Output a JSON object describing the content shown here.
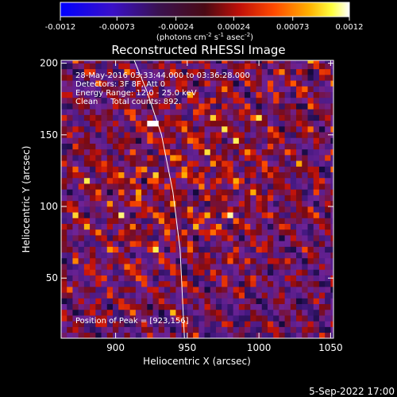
{
  "title": "Reconstructed RHESSI Image",
  "footer_date": "5-Sep-2022 17:00",
  "colorbar": {
    "ticks": [
      "-0.0012",
      "-0.00073",
      "-0.00024",
      "0.00024",
      "0.00073",
      "0.0012"
    ],
    "tick_values": [
      -0.0012,
      -0.00073,
      -0.00024,
      0.00024,
      0.00073,
      0.0012
    ],
    "label_main": "(photons cm",
    "label_sup1": "-2",
    "label_mid1": " s",
    "label_sup2": "-1",
    "label_mid2": " asec",
    "label_sup3": "-2",
    "label_end": ")"
  },
  "annotations": {
    "line1": "28-May-2016 03:33:44.000 to 03:36:28.000",
    "line2": "Detectors: 3F 8F, Att 0",
    "line3": "Energy Range: 12.0 - 25.0 keV",
    "line4": "Clean     Total counts: 892.",
    "peak": "Position of Peak = [923,156]"
  },
  "chart_data": {
    "type": "heatmap",
    "title": "Reconstructed RHESSI Image",
    "xlabel": "Heliocentric X (arcsec)",
    "ylabel": "Heliocentric Y (arcsec)",
    "xlim": [
      862,
      1052
    ],
    "ylim": [
      8,
      202
    ],
    "x_ticks": [
      900,
      950,
      1000,
      1050
    ],
    "x_tick_labels": [
      "900",
      "950",
      "1000",
      "1050"
    ],
    "y_ticks": [
      50,
      100,
      150,
      200
    ],
    "y_tick_labels": [
      "50",
      "100",
      "150",
      "200"
    ],
    "colorbar_range": [
      -0.0012,
      0.0012
    ],
    "colormap": "blue-purple-red-orange-yellow-white",
    "peak_position": [
      923,
      156
    ],
    "pixel_size_arcsec": 4,
    "limb_curve": [
      [
        913,
        202
      ],
      [
        922,
        180
      ],
      [
        932,
        150
      ],
      [
        940,
        110
      ],
      [
        945,
        70
      ],
      [
        948,
        8
      ]
    ]
  }
}
